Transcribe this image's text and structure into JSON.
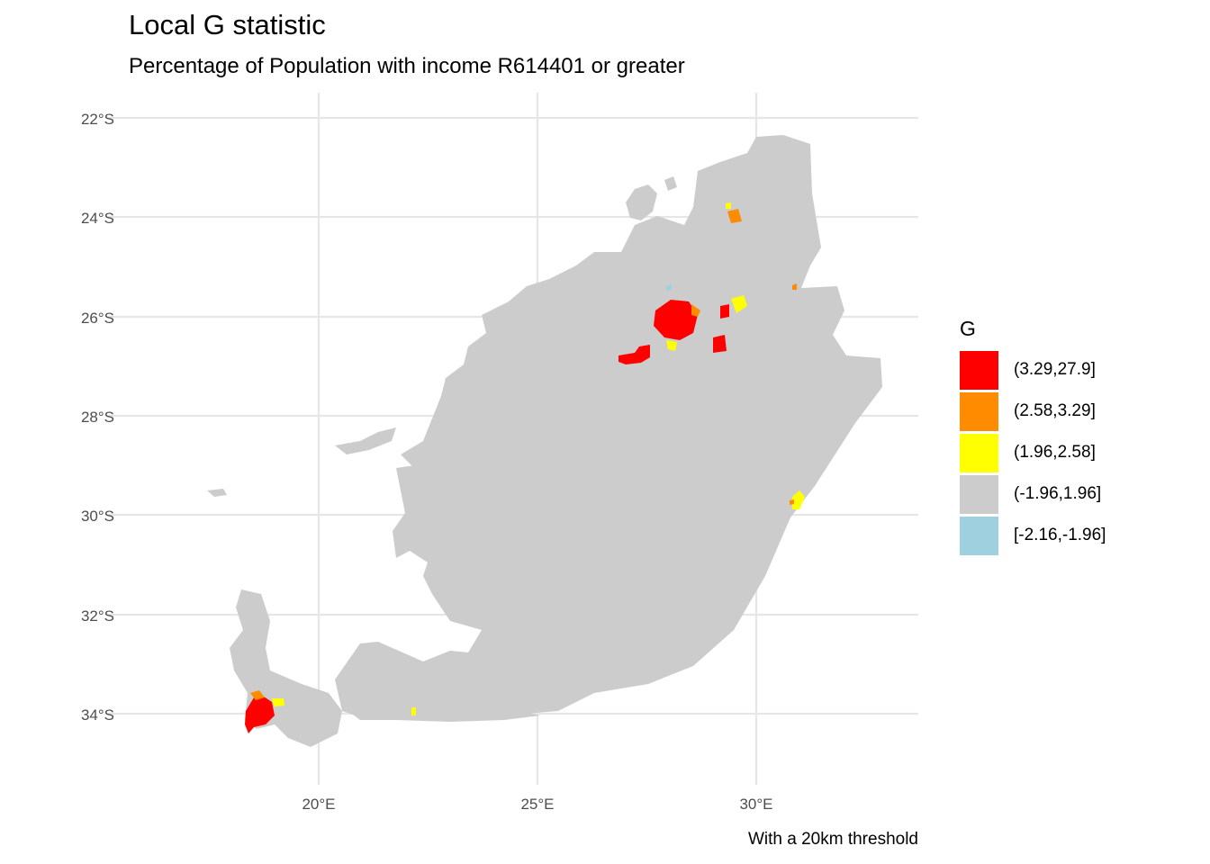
{
  "title": "Local G statistic",
  "subtitle": "Percentage of Population with income R614401 or greater",
  "caption": "With a 20km threshold",
  "colors": {
    "land": "#cccccc",
    "grid": "#e6e6e6",
    "background": "#ffffff"
  },
  "axes": {
    "lat_ticks": [
      "22°S",
      "24°S",
      "26°S",
      "28°S",
      "30°S",
      "32°S",
      "34°S"
    ],
    "lon_ticks": [
      "20°E",
      "25°E",
      "30°E"
    ]
  },
  "legend": {
    "title": "G",
    "items": [
      {
        "label": "(3.29,27.9]",
        "color": "#ff0000"
      },
      {
        "label": "(2.58,3.29]",
        "color": "#ff8c00"
      },
      {
        "label": "(1.96,2.58]",
        "color": "#ffff00"
      },
      {
        "label": "(-1.96,1.96]",
        "color": "#cccccc"
      },
      {
        "label": "[-2.16,-1.96]",
        "color": "#9fd0e0"
      }
    ]
  },
  "hotspots": [
    {
      "area": "Johannesburg-Pretoria region",
      "class": "(3.29,27.9]"
    },
    {
      "area": "Cape Town region",
      "class": "(3.29,27.9]"
    },
    {
      "area": "Durban coast",
      "class": "(1.96,2.58]"
    }
  ]
}
